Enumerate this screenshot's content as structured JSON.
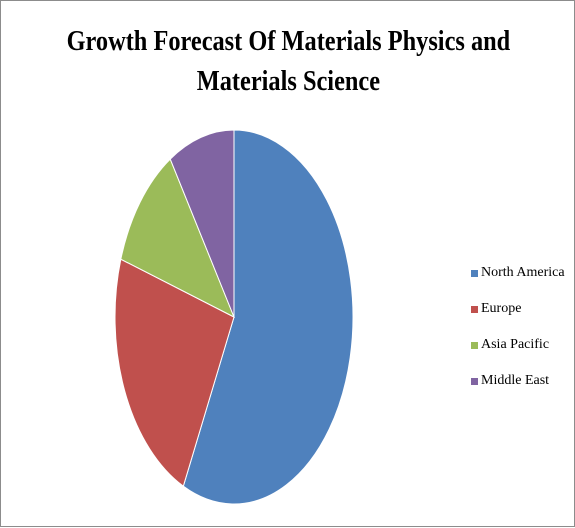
{
  "chart_data": {
    "type": "pie",
    "title_lines": [
      "Growth Forecast Of Materials Physics and",
      "Materials Science"
    ],
    "categories": [
      "North America",
      "Europe",
      "Asia Pacific",
      "Middle East"
    ],
    "values": [
      57,
      23,
      11,
      9
    ],
    "colors": [
      "#4f81bd",
      "#c0504d",
      "#9bbb59",
      "#8064a2"
    ],
    "legend_position": "right"
  }
}
